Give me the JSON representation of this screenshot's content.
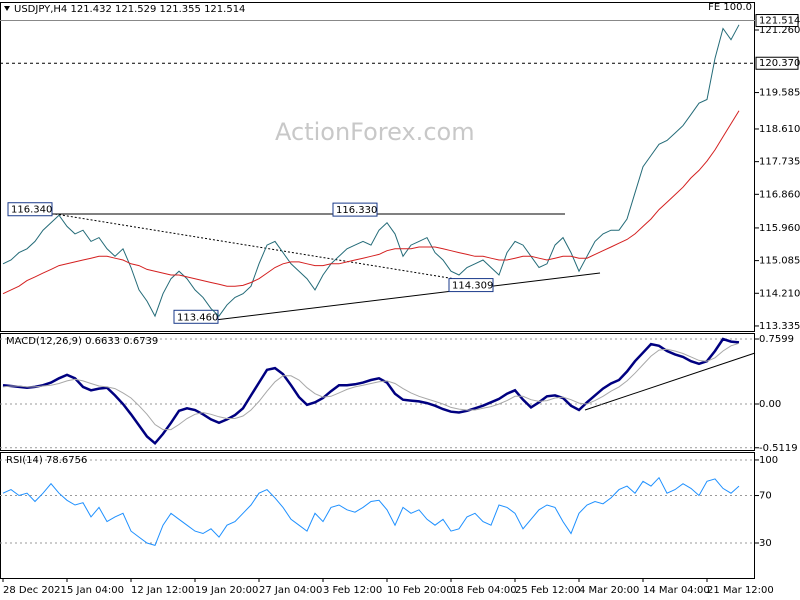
{
  "chart_data": [
    {
      "type": "line",
      "title": "USDJPY,H4  121.432 121.529 121.355 121.514",
      "fe": "FE 100.0",
      "watermark": "ActionForex.com",
      "ylim": [
        113.2,
        122.01
      ],
      "yticks": [
        113.335,
        {
          "value": 114.21,
          "label": "114.210"
        },
        115.085,
        {
          "value": 115.96,
          "label": "115.960"
        },
        {
          "value": 116.86,
          "label": "116.860"
        },
        117.735,
        {
          "value": 118.61,
          "label": "118.610"
        },
        119.585,
        {
          "value": 121.26,
          "label": "121.260"
        }
      ],
      "grid": false,
      "current_price": 121.514,
      "level": {
        "value": 120.37,
        "label": "120.370"
      },
      "annotations": [
        {
          "value": 116.34,
          "label": "116.340"
        },
        {
          "value": 116.33,
          "label": "116.330"
        },
        {
          "value": 114.309,
          "label": "114.309"
        },
        {
          "value": 113.46,
          "label": "113.460"
        }
      ],
      "series": [
        {
          "name": "USDJPY",
          "color": "#246b78",
          "values": [
            115.0,
            115.1,
            115.3,
            115.4,
            115.6,
            115.9,
            116.1,
            116.3,
            116.0,
            115.8,
            115.9,
            115.6,
            115.7,
            115.4,
            115.2,
            115.4,
            114.9,
            114.3,
            114.0,
            113.6,
            114.2,
            114.6,
            114.8,
            114.6,
            114.3,
            114.1,
            113.8,
            113.6,
            113.9,
            114.1,
            114.2,
            114.4,
            115.0,
            115.5,
            115.6,
            115.3,
            115.0,
            114.8,
            114.6,
            114.3,
            114.7,
            115.0,
            115.2,
            115.4,
            115.5,
            115.6,
            115.5,
            115.9,
            116.1,
            115.8,
            115.2,
            115.5,
            115.6,
            115.7,
            115.3,
            115.1,
            114.8,
            114.7,
            114.9,
            115.0,
            115.1,
            114.9,
            114.7,
            115.3,
            115.6,
            115.5,
            115.2,
            114.9,
            115.0,
            115.5,
            115.7,
            115.3,
            114.8,
            115.2,
            115.6,
            115.8,
            115.9,
            115.9,
            116.2,
            116.9,
            117.6,
            117.9,
            118.2,
            118.3,
            118.5,
            118.7,
            119.0,
            119.3,
            119.4,
            120.5,
            121.3,
            121.0,
            121.4
          ]
        },
        {
          "name": "MA",
          "color": "#d42020",
          "values": [
            114.2,
            114.3,
            114.4,
            114.55,
            114.65,
            114.75,
            114.85,
            114.95,
            115.0,
            115.05,
            115.1,
            115.15,
            115.2,
            115.2,
            115.15,
            115.1,
            115.0,
            114.95,
            114.85,
            114.8,
            114.75,
            114.7,
            114.7,
            114.65,
            114.6,
            114.55,
            114.5,
            114.45,
            114.4,
            114.4,
            114.42,
            114.5,
            114.6,
            114.75,
            114.9,
            115.0,
            115.05,
            115.05,
            115.0,
            114.95,
            114.95,
            115.0,
            115.0,
            115.05,
            115.1,
            115.15,
            115.2,
            115.25,
            115.35,
            115.4,
            115.4,
            115.4,
            115.45,
            115.45,
            115.45,
            115.4,
            115.35,
            115.3,
            115.25,
            115.2,
            115.2,
            115.15,
            115.1,
            115.1,
            115.15,
            115.2,
            115.2,
            115.15,
            115.1,
            115.15,
            115.2,
            115.2,
            115.15,
            115.15,
            115.25,
            115.35,
            115.45,
            115.55,
            115.65,
            115.8,
            116.0,
            116.2,
            116.45,
            116.65,
            116.85,
            117.05,
            117.3,
            117.5,
            117.75,
            118.05,
            118.4,
            118.75,
            119.1
          ]
        }
      ]
    },
    {
      "type": "line",
      "title": "MACD(12,26,9) 0.6633 0.6739",
      "ylim": [
        -0.538,
        0.83
      ],
      "yticks": [
        -0.5119,
        {
          "value": 0,
          "label": "0.00"
        },
        0.7599
      ],
      "grid": true,
      "series": [
        {
          "name": "MACD",
          "color": "#000080",
          "values": [
            0.22,
            0.21,
            0.2,
            0.19,
            0.2,
            0.22,
            0.25,
            0.3,
            0.34,
            0.3,
            0.2,
            0.16,
            0.18,
            0.19,
            0.1,
            0.0,
            -0.12,
            -0.25,
            -0.38,
            -0.46,
            -0.35,
            -0.22,
            -0.08,
            -0.05,
            -0.07,
            -0.12,
            -0.18,
            -0.22,
            -0.18,
            -0.13,
            -0.05,
            0.1,
            0.25,
            0.4,
            0.42,
            0.35,
            0.22,
            0.08,
            -0.01,
            0.02,
            0.07,
            0.15,
            0.22,
            0.22,
            0.23,
            0.25,
            0.28,
            0.3,
            0.25,
            0.12,
            0.05,
            0.04,
            0.03,
            0.01,
            -0.02,
            -0.06,
            -0.09,
            -0.1,
            -0.08,
            -0.05,
            -0.02,
            0.02,
            0.06,
            0.12,
            0.16,
            0.05,
            -0.04,
            0.02,
            0.09,
            0.1,
            0.07,
            -0.02,
            -0.07,
            0.02,
            0.1,
            0.18,
            0.24,
            0.28,
            0.38,
            0.5,
            0.6,
            0.7,
            0.68,
            0.62,
            0.58,
            0.55,
            0.5,
            0.47,
            0.5,
            0.62,
            0.76,
            0.73,
            0.72
          ]
        },
        {
          "name": "Signal",
          "color": "#a8a8a8",
          "values": [
            0.2,
            0.21,
            0.21,
            0.2,
            0.2,
            0.21,
            0.22,
            0.24,
            0.27,
            0.29,
            0.27,
            0.24,
            0.21,
            0.2,
            0.18,
            0.13,
            0.07,
            -0.02,
            -0.12,
            -0.24,
            -0.3,
            -0.3,
            -0.24,
            -0.17,
            -0.12,
            -0.1,
            -0.12,
            -0.15,
            -0.17,
            -0.17,
            -0.14,
            -0.07,
            0.03,
            0.15,
            0.26,
            0.33,
            0.33,
            0.28,
            0.19,
            0.12,
            0.08,
            0.09,
            0.13,
            0.17,
            0.2,
            0.22,
            0.24,
            0.26,
            0.27,
            0.24,
            0.18,
            0.13,
            0.09,
            0.06,
            0.03,
            0.0,
            -0.04,
            -0.06,
            -0.07,
            -0.07,
            -0.05,
            -0.03,
            0.0,
            0.04,
            0.09,
            0.09,
            0.05,
            0.03,
            0.04,
            0.07,
            0.08,
            0.05,
            0.01,
            0.0,
            0.04,
            0.09,
            0.15,
            0.2,
            0.27,
            0.36,
            0.46,
            0.56,
            0.63,
            0.64,
            0.62,
            0.59,
            0.55,
            0.51,
            0.5,
            0.54,
            0.62,
            0.68,
            0.71
          ]
        }
      ]
    },
    {
      "type": "line",
      "title": "RSI(14) 78.6756",
      "ylim": [
        0.5,
        106.7
      ],
      "yticks": [
        30,
        70,
        100
      ],
      "grid": true,
      "categories": [
        "28 Dec 2021",
        null,
        null,
        null,
        null,
        null,
        null,
        null,
        "5 Jan 04:00",
        null,
        null,
        null,
        null,
        null,
        null,
        null,
        "12 Jan 12:00",
        null,
        null,
        null,
        null,
        null,
        null,
        null,
        "19 Jan 20:00",
        null,
        null,
        null,
        null,
        null,
        null,
        null,
        "27 Jan 04:00",
        null,
        null,
        null,
        null,
        null,
        null,
        null,
        "3 Feb 12:00",
        null,
        null,
        null,
        null,
        null,
        null,
        null,
        "10 Feb 20:00",
        null,
        null,
        null,
        null,
        null,
        null,
        null,
        "18 Feb 04:00",
        null,
        null,
        null,
        null,
        null,
        null,
        null,
        "25 Feb 12:00",
        null,
        null,
        null,
        null,
        null,
        null,
        null,
        "4 Mar 20:00",
        null,
        null,
        null,
        null,
        null,
        null,
        null,
        "14 Mar 04:00",
        null,
        null,
        null,
        null,
        null,
        null,
        null,
        "21 Mar 12:00",
        null,
        null,
        null,
        null
      ],
      "series": [
        {
          "name": "RSI",
          "color": "#1e90ff",
          "values": [
            72,
            75,
            70,
            72,
            65,
            72,
            80,
            72,
            66,
            62,
            64,
            52,
            60,
            48,
            52,
            55,
            40,
            35,
            30,
            28,
            45,
            55,
            50,
            45,
            40,
            38,
            42,
            35,
            45,
            48,
            55,
            62,
            72,
            75,
            68,
            60,
            50,
            45,
            40,
            55,
            48,
            60,
            62,
            58,
            56,
            60,
            65,
            66,
            58,
            45,
            60,
            55,
            58,
            50,
            45,
            50,
            40,
            42,
            52,
            55,
            48,
            45,
            62,
            60,
            55,
            42,
            50,
            58,
            62,
            60,
            48,
            38,
            55,
            62,
            65,
            63,
            68,
            75,
            78,
            72,
            82,
            78,
            85,
            72,
            75,
            80,
            76,
            70,
            82,
            84,
            76,
            72,
            78
          ]
        }
      ]
    }
  ]
}
